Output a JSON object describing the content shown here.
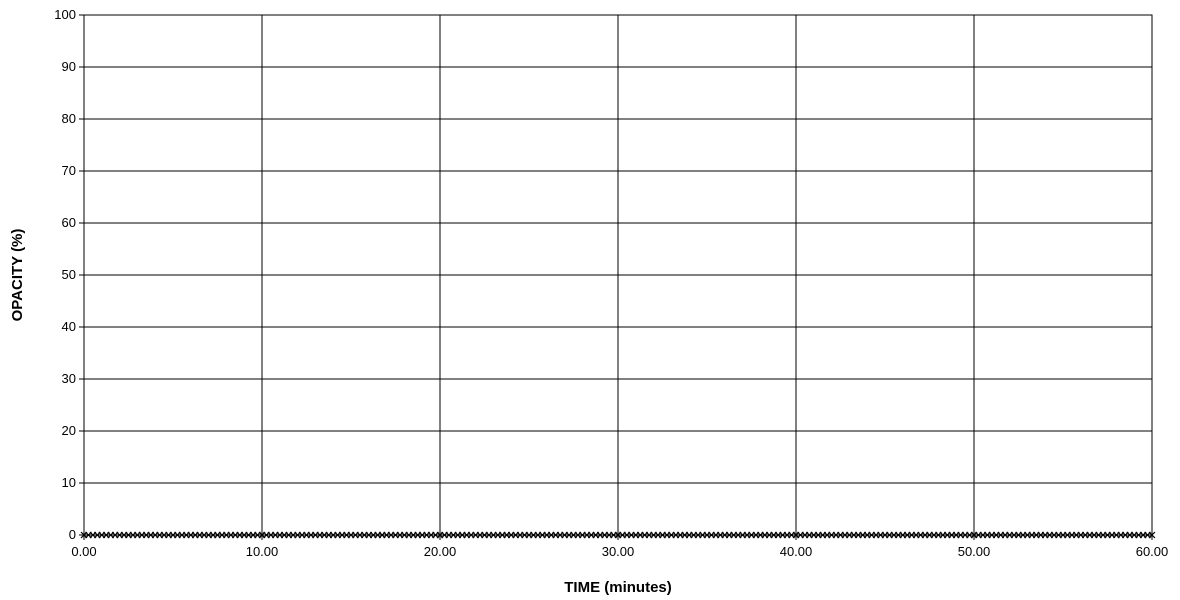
{
  "chart_data": {
    "type": "scatter",
    "title": "",
    "xlabel": "TIME (minutes)",
    "ylabel": "OPACITY (%)",
    "xlim": [
      0,
      60
    ],
    "ylim": [
      0,
      100
    ],
    "x_ticks": [
      "0.00",
      "10.00",
      "20.00",
      "30.00",
      "40.00",
      "50.00",
      "60.00"
    ],
    "y_ticks": [
      "0",
      "10",
      "20",
      "30",
      "40",
      "50",
      "60",
      "70",
      "80",
      "90",
      "100"
    ],
    "grid": true,
    "legend": "none",
    "series": [
      {
        "marker": "x",
        "color": "#000000",
        "x_start": 0,
        "x_end": 60,
        "x_step": 0.25,
        "y_constant": 0
      }
    ]
  }
}
